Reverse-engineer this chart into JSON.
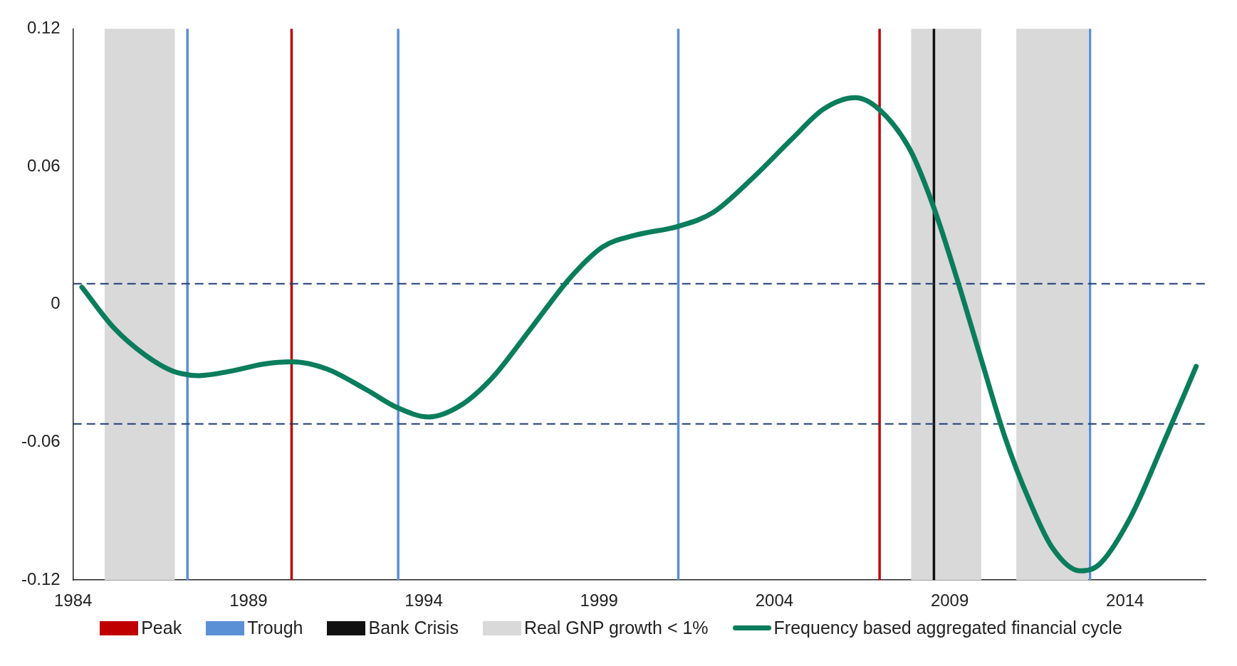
{
  "chart_data": {
    "type": "line",
    "xlim": [
      1984,
      2016.3
    ],
    "xticks": [
      1984,
      1989,
      1994,
      1999,
      2004,
      2009,
      2014
    ],
    "ylim": [
      -0.12,
      0.12
    ],
    "yticks": [
      0.12,
      0.06,
      0,
      -0.06,
      -0.12
    ],
    "grid": false,
    "legend": "bottom",
    "marker": "none",
    "line_style": "solid",
    "series": [
      {
        "name": "Frequency based aggregated financial cycle",
        "color": "#0a7d5c",
        "x": [
          1984.25,
          1985.15,
          1986.05,
          1986.84,
          1987.58,
          1988.52,
          1989.42,
          1990.23,
          1991.22,
          1992.35,
          1993.25,
          1994.15,
          1995.05,
          1995.95,
          1997.08,
          1998.2,
          1999.1,
          2000.0,
          2001.26,
          2002.25,
          2003.38,
          2004.5,
          2005.4,
          2006.3,
          2006.98,
          2007.88,
          2008.55,
          2009.23,
          2009.9,
          2010.58,
          2011.26,
          2011.93,
          2012.72,
          2013.28,
          2014.18,
          2015.08,
          2016.03
        ],
        "values": [
          0.0075,
          -0.01,
          -0.022,
          -0.029,
          -0.031,
          -0.029,
          -0.026,
          -0.025,
          -0.028,
          -0.037,
          -0.045,
          -0.049,
          -0.044,
          -0.032,
          -0.01,
          0.012,
          0.025,
          0.03,
          0.034,
          0.04,
          0.055,
          0.072,
          0.085,
          0.09,
          0.085,
          0.067,
          0.042,
          0.01,
          -0.024,
          -0.058,
          -0.085,
          -0.106,
          -0.116,
          -0.113,
          -0.092,
          -0.061,
          -0.027
        ]
      }
    ],
    "bands": [
      {
        "axis": "x",
        "from": 1984.9,
        "to": 1986.9,
        "label": "Real GNP growth < 1%",
        "color": "#d9d9d9"
      },
      {
        "axis": "x",
        "from": 2007.9,
        "to": 2009.9,
        "color": "#d9d9d9"
      },
      {
        "axis": "x",
        "from": 2010.9,
        "to": 2012.95,
        "color": "#d9d9d9"
      }
    ],
    "ref_lines": [
      {
        "axis": "x",
        "value": 1990.23,
        "label": "Peak",
        "color": "#c00000"
      },
      {
        "axis": "x",
        "value": 2007.0,
        "color": "#c00000"
      },
      {
        "axis": "x",
        "value": 1987.26,
        "label": "Trough",
        "color": "#5b8fd6"
      },
      {
        "axis": "x",
        "value": 1993.27,
        "color": "#5b8fd6"
      },
      {
        "axis": "x",
        "value": 2001.26,
        "color": "#5b8fd6"
      },
      {
        "axis": "x",
        "value": 2013.0,
        "color": "#5b8fd6"
      },
      {
        "axis": "x",
        "value": 2008.55,
        "label": "Bank Crisis",
        "color": "#111111"
      },
      {
        "axis": "y",
        "value": 0.009,
        "color": "#1f3d7a",
        "line_style": "dashed"
      },
      {
        "axis": "y",
        "value": -0.052,
        "color": "#1f3d7a",
        "line_style": "dashed"
      }
    ]
  }
}
